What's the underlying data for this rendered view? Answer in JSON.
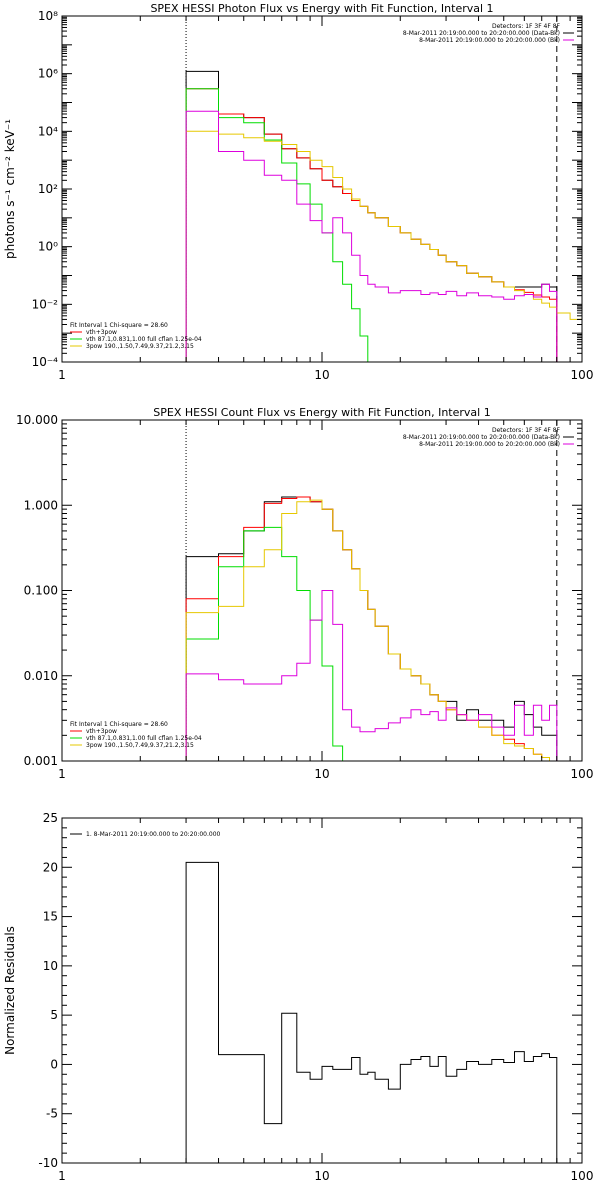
{
  "colors": {
    "black": "#000000",
    "red": "#ff0000",
    "green": "#00dd00",
    "yellow": "#e6c800",
    "magenta": "#dd00dd"
  },
  "chart_data": [
    {
      "type": "line",
      "title": "SPEX HESSI Photon Flux vs Energy with Fit Function, Interval 1",
      "ylabel": "photons s⁻¹ cm⁻² keV⁻¹",
      "xscale": "log",
      "yscale": "log",
      "xlim": [
        1,
        100
      ],
      "ylim": [
        0.0001,
        100000000
      ],
      "x_ticks": [
        "1",
        "10",
        "100"
      ],
      "y_ticks": [
        "10⁻⁴",
        "10⁻²",
        "10⁰",
        "10²",
        "10⁴",
        "10⁶",
        "10⁸"
      ],
      "info_lines": [
        "Detectors: 1F 3F 4F 8F",
        "8-Mar-2011 20:19:00.000 to 20:20:00.000 (Data-Bk)",
        "8-Mar-2011 20:19:00.000 to 20:20:00.000 (Bk)"
      ],
      "legend_lines": [
        "Fit Interval 1   Chi-square = 28.60",
        "vth+3pow",
        "vth 87.1,0.831,1.00  full cflan 1.25e-04",
        "3pow 190.,1.50,7.49,9.37,21.2,3.15"
      ],
      "legend_colors": [
        "black",
        "red",
        "green",
        "yellow"
      ],
      "markers": {
        "dotted_x": 3,
        "dashed_x": 80
      },
      "series": [
        {
          "color": "black",
          "edges": [
            3,
            4,
            5,
            6,
            7,
            8,
            9,
            10,
            11,
            12,
            13,
            14,
            15,
            16,
            18,
            20,
            22,
            24,
            26,
            28,
            30,
            33,
            36,
            40,
            45,
            50,
            55,
            60,
            65,
            70,
            75,
            80
          ],
          "values": [
            1200000,
            40000,
            30000,
            8000,
            2500,
            1200,
            500,
            200,
            120,
            70,
            40,
            25,
            15,
            10,
            5,
            3,
            1.8,
            1.2,
            0.8,
            0.5,
            0.3,
            0.22,
            0.12,
            0.09,
            0.06,
            0.04,
            0.04,
            0.04,
            0.04,
            0.05,
            0.04
          ]
        },
        {
          "color": "red",
          "edges": [
            3,
            4,
            5,
            6,
            7,
            8,
            9,
            10,
            11,
            12,
            13,
            14,
            15,
            16,
            18,
            20,
            22,
            24,
            26,
            28,
            30,
            33,
            36,
            40,
            45,
            50,
            55,
            60,
            65,
            70,
            75,
            80
          ],
          "values": [
            300000,
            40000,
            30000,
            8000,
            2500,
            1200,
            500,
            200,
            120,
            70,
            40,
            25,
            15,
            10,
            5,
            3,
            1.8,
            1.2,
            0.8,
            0.5,
            0.3,
            0.22,
            0.12,
            0.09,
            0.06,
            0.04,
            0.032,
            0.026,
            0.021,
            0.018,
            0.015
          ]
        },
        {
          "color": "green",
          "edges": [
            3,
            4,
            5,
            6,
            7,
            8,
            9,
            10,
            11,
            12,
            13,
            14,
            15
          ],
          "values": [
            300000,
            30000,
            20000,
            5000,
            800,
            150,
            30,
            3,
            0.3,
            0.05,
            0.007,
            0.0008
          ]
        },
        {
          "color": "yellow",
          "edges": [
            3,
            4,
            5,
            6,
            7,
            8,
            9,
            10,
            11,
            12,
            13,
            14,
            15,
            16,
            18,
            20,
            22,
            24,
            26,
            28,
            30,
            33,
            36,
            40,
            45,
            50,
            55,
            60,
            65,
            70,
            75,
            80,
            90,
            100
          ],
          "values": [
            10000,
            8000,
            6000,
            4500,
            3500,
            2000,
            1000,
            600,
            250,
            100,
            45,
            25,
            15,
            10,
            5,
            3,
            1.8,
            1.2,
            0.8,
            0.5,
            0.3,
            0.22,
            0.12,
            0.09,
            0.06,
            0.04,
            0.03,
            0.022,
            0.015,
            0.011,
            0.008,
            0.005,
            0.003
          ]
        },
        {
          "color": "magenta",
          "edges": [
            3,
            4,
            5,
            6,
            7,
            8,
            9,
            10,
            11,
            12,
            13,
            14,
            15,
            16,
            18,
            20,
            22,
            24,
            26,
            28,
            30,
            33,
            36,
            40,
            45,
            50,
            55,
            60,
            65,
            70,
            75,
            80
          ],
          "values": [
            50000,
            2000,
            1000,
            300,
            200,
            30,
            8,
            3,
            10,
            3,
            0.5,
            0.1,
            0.05,
            0.04,
            0.025,
            0.03,
            0.03,
            0.022,
            0.025,
            0.022,
            0.028,
            0.02,
            0.025,
            0.02,
            0.018,
            0.015,
            0.02,
            0.022,
            0.018,
            0.05,
            0.028
          ]
        }
      ]
    },
    {
      "type": "line",
      "title": "SPEX HESSI Count Flux vs Energy with Fit Function, Interval 1",
      "xscale": "log",
      "yscale": "log",
      "xlim": [
        1,
        100
      ],
      "ylim": [
        0.001,
        10
      ],
      "x_ticks": [
        "1",
        "10",
        "100"
      ],
      "y_ticks": [
        "0.001",
        "0.010",
        "0.100",
        "1.000",
        "10.000"
      ],
      "info_lines": [
        "Detectors: 1F 3F 4F 8F",
        "8-Mar-2011 20:19:00.000 to 20:20:00.000 (Data-Bk)",
        "8-Mar-2011 20:19:00.000 to 20:20:00.000 (Bk)"
      ],
      "legend_lines": [
        "Fit Interval 1   Chi-square = 28.60",
        "vth+3pow",
        "vth 87.1,0.831,1.00  full cflan 1.25e-04",
        "3pow 190.,1.50,7.49,9.37,21.2,3.15"
      ],
      "legend_colors": [
        "black",
        "red",
        "green",
        "yellow"
      ],
      "markers": {
        "dotted_x": 3,
        "dashed_x": 80
      },
      "series": [
        {
          "color": "black",
          "edges": [
            3,
            4,
            5,
            6,
            7,
            8,
            9,
            10,
            11,
            12,
            13,
            14,
            15,
            16,
            18,
            20,
            22,
            24,
            26,
            28,
            30,
            33,
            36,
            40,
            45,
            50,
            55,
            60,
            65,
            70,
            75,
            80
          ],
          "values": [
            0.25,
            0.27,
            0.5,
            1.1,
            1.25,
            1.25,
            1.1,
            0.9,
            0.5,
            0.3,
            0.18,
            0.1,
            0.06,
            0.038,
            0.018,
            0.012,
            0.01,
            0.008,
            0.006,
            0.005,
            0.005,
            0.003,
            0.004,
            0.003,
            0.003,
            0.0025,
            0.005,
            0.0035,
            0.0025,
            0.002,
            0.002
          ]
        },
        {
          "color": "red",
          "edges": [
            3,
            4,
            5,
            6,
            7,
            8,
            9,
            10,
            11,
            12,
            13,
            14,
            15,
            16,
            18,
            20,
            22,
            24,
            26,
            28,
            30,
            33,
            36,
            40,
            45,
            50,
            55,
            60,
            65,
            70,
            75,
            80
          ],
          "values": [
            0.08,
            0.25,
            0.55,
            1.05,
            1.2,
            1.25,
            1.1,
            0.9,
            0.5,
            0.3,
            0.18,
            0.1,
            0.06,
            0.038,
            0.018,
            0.012,
            0.01,
            0.008,
            0.006,
            0.005,
            0.004,
            0.0035,
            0.003,
            0.0025,
            0.002,
            0.0018,
            0.0016,
            0.0014,
            0.0012,
            0.0011,
            0.001
          ]
        },
        {
          "color": "green",
          "edges": [
            3,
            4,
            5,
            6,
            7,
            8,
            9,
            10,
            11,
            12
          ],
          "values": [
            0.027,
            0.19,
            0.5,
            0.55,
            0.25,
            0.1,
            0.045,
            0.013,
            0.0015
          ]
        },
        {
          "color": "yellow",
          "edges": [
            3,
            4,
            5,
            6,
            7,
            8,
            9,
            10,
            11,
            12,
            13,
            14,
            15,
            16,
            18,
            20,
            22,
            24,
            26,
            28,
            30,
            33,
            36,
            40,
            45,
            50,
            55,
            60,
            65,
            70,
            75,
            80
          ],
          "values": [
            0.055,
            0.065,
            0.19,
            0.3,
            0.8,
            1.1,
            1.15,
            0.9,
            0.5,
            0.3,
            0.18,
            0.1,
            0.06,
            0.038,
            0.018,
            0.012,
            0.01,
            0.008,
            0.006,
            0.005,
            0.004,
            0.0035,
            0.003,
            0.0025,
            0.002,
            0.0016,
            0.0015,
            0.0014,
            0.0012,
            0.0011,
            0.001
          ]
        },
        {
          "color": "magenta",
          "edges": [
            3,
            4,
            5,
            6,
            7,
            8,
            9,
            10,
            11,
            12,
            13,
            14,
            15,
            16,
            18,
            20,
            22,
            24,
            26,
            28,
            30,
            33,
            36,
            40,
            45,
            50,
            55,
            60,
            65,
            70,
            75,
            80
          ],
          "values": [
            0.0105,
            0.009,
            0.008,
            0.008,
            0.01,
            0.014,
            0.045,
            0.1,
            0.04,
            0.004,
            0.0025,
            0.0022,
            0.0022,
            0.0024,
            0.0028,
            0.0032,
            0.004,
            0.0035,
            0.0038,
            0.003,
            0.0042,
            0.0035,
            0.003,
            0.0035,
            0.0025,
            0.002,
            0.0045,
            0.002,
            0.0045,
            0.003,
            0.0045
          ]
        }
      ]
    },
    {
      "type": "line",
      "xscale": "log",
      "yscale": "linear",
      "xlim": [
        1,
        100
      ],
      "ylim": [
        -10,
        25
      ],
      "ylabel": "Normalized Residuals",
      "x_ticks": [
        "1",
        "10",
        "100"
      ],
      "y_ticks": [
        "-10",
        "-5",
        "0",
        "5",
        "10",
        "15",
        "20",
        "25"
      ],
      "legend_lines": [
        "1.  8-Mar-2011 20:19:00.000 to 20:20:00.000"
      ],
      "legend_colors": [
        "black"
      ],
      "series": [
        {
          "color": "black",
          "edges": [
            3,
            4,
            5,
            6,
            7,
            8,
            9,
            10,
            11,
            12,
            13,
            14,
            15,
            16,
            18,
            20,
            22,
            24,
            26,
            28,
            30,
            33,
            36,
            40,
            45,
            50,
            55,
            60,
            65,
            70,
            75,
            80
          ],
          "values": [
            20.5,
            1,
            1,
            -6,
            5.2,
            -0.8,
            -1.5,
            -0.2,
            -0.5,
            -0.5,
            0.7,
            -1,
            -0.8,
            -1.5,
            -2.5,
            0,
            0.5,
            0.8,
            -0.2,
            0.8,
            -1.2,
            -0.5,
            0.3,
            0,
            0.5,
            0.2,
            1.3,
            0.3,
            0.8,
            1.1,
            0.7
          ]
        }
      ]
    }
  ]
}
